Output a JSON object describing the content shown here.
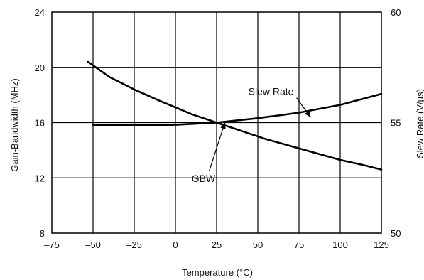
{
  "chart_data": {
    "type": "line",
    "xlabel": "Temperature (°C)",
    "ylabel": "Gain-Bandwidth (MHz)",
    "y2label": "Slew Rate (V/µs)",
    "xlim": [
      -75,
      125
    ],
    "ylim": [
      8,
      24
    ],
    "y2lim": [
      50,
      60
    ],
    "x_ticks": [
      -75,
      -50,
      -25,
      0,
      25,
      50,
      75,
      100,
      125
    ],
    "x_tick_labels": [
      "–75",
      "–50",
      "–25",
      "0",
      "25",
      "50",
      "75",
      "100",
      "125"
    ],
    "y_ticks": [
      8,
      12,
      16,
      20,
      24
    ],
    "y2_ticks": [
      50,
      55,
      60
    ],
    "grid": true,
    "series": [
      {
        "name": "GBW",
        "axis": "left",
        "x": [
          -53,
          -40,
          -25,
          -10,
          0,
          10,
          25,
          40,
          55,
          70,
          85,
          100,
          115,
          125
        ],
        "y": [
          20.4,
          19.3,
          18.4,
          17.6,
          17.1,
          16.6,
          16.0,
          15.4,
          14.8,
          14.3,
          13.8,
          13.3,
          12.9,
          12.6
        ]
      },
      {
        "name": "Slew Rate",
        "axis": "right",
        "x": [
          -50,
          -35,
          -20,
          0,
          25,
          50,
          75,
          100,
          125
        ],
        "y": [
          54.9,
          54.88,
          54.88,
          54.9,
          55.0,
          55.2,
          55.45,
          55.8,
          56.3
        ]
      }
    ],
    "annotations": [
      {
        "text": "Slew Rate",
        "x": 58,
        "y": 18.0,
        "arrow_to": [
          82,
          16.4
        ]
      },
      {
        "text": "GBW",
        "x": 17,
        "y": 11.7,
        "arrow_to": [
          30,
          16.0
        ]
      }
    ]
  }
}
